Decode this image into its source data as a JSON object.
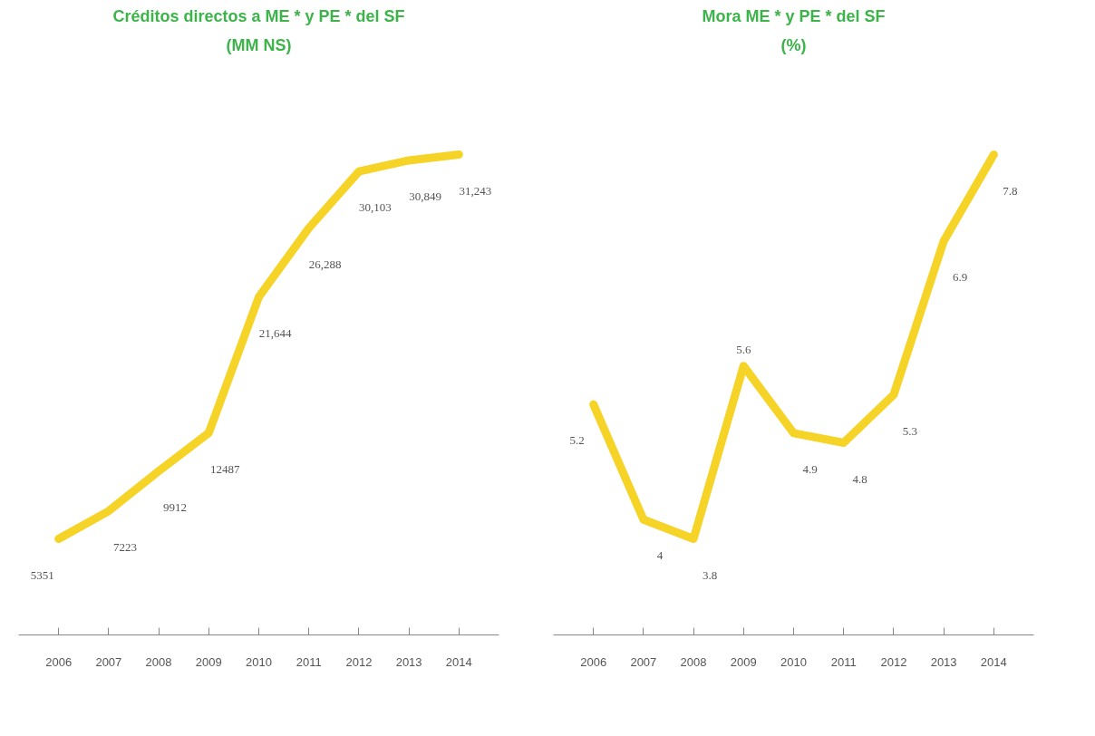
{
  "chart_data": [
    {
      "type": "line",
      "title": "Créditos directos a ME * y PE * del SF",
      "subtitle": "(MM NS)",
      "categories": [
        "2006",
        "2007",
        "2008",
        "2009",
        "2010",
        "2011",
        "2012",
        "2013",
        "2014"
      ],
      "series": [
        {
          "color": "#f5d327",
          "values": [
            5351,
            7223,
            9912,
            12487,
            21644,
            26288,
            30103,
            30849,
            31243
          ],
          "value_labels": [
            "5351",
            "7223",
            "9912",
            "12487",
            "21,644",
            "26,288",
            "30,103",
            "30,849",
            "31,243"
          ]
        }
      ],
      "grid": false,
      "legend": false,
      "marker": "none",
      "line_style": "solid",
      "tick_labels": "x"
    },
    {
      "type": "line",
      "title": "Mora ME * y PE * del SF",
      "subtitle": "(%)",
      "categories": [
        "2006",
        "2007",
        "2008",
        "2009",
        "2010",
        "2011",
        "2012",
        "2013",
        "2014"
      ],
      "series": [
        {
          "color": "#f5d327",
          "values": [
            5.2,
            4,
            3.8,
            5.6,
            4.9,
            4.8,
            5.3,
            6.9,
            7.8
          ],
          "value_labels": [
            "5.2",
            "4",
            "3.8",
            "5.6",
            "4.9",
            "4.8",
            "5.3",
            "6.9",
            "7.8"
          ]
        }
      ],
      "grid": false,
      "legend": false,
      "marker": "none",
      "line_style": "solid",
      "tick_labels": "x"
    }
  ]
}
